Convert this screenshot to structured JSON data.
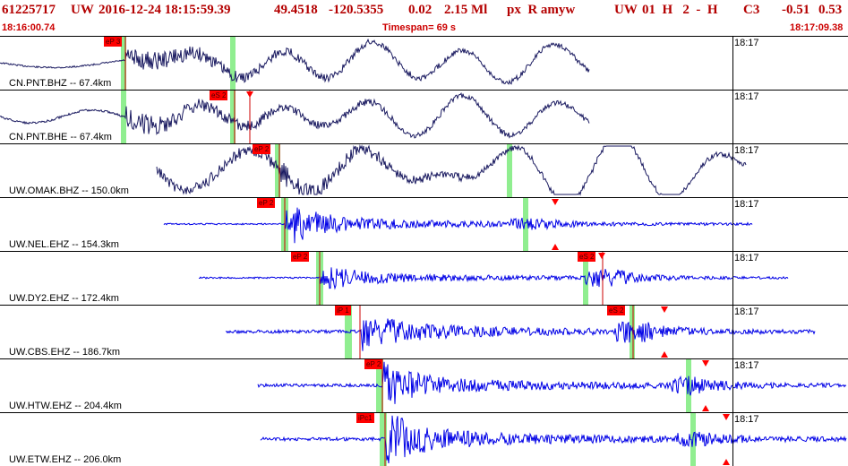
{
  "header": {
    "event_id": "61225717",
    "network": "UW",
    "datetime": "2016-12-24 18:15:59.39",
    "lat": "49.4518",
    "lon": "-120.5355",
    "depth": "0.02",
    "magnitude": "2.15 Ml",
    "flags": "px  R amyw",
    "net2": "UW",
    "code": "01  H   2  -  H",
    "quality": "C3",
    "v1": "-0.51",
    "v2": "0.53"
  },
  "subheader": {
    "start_time": "18:16:00.74",
    "timespan": "Timespan=  69 s",
    "end_time": "18:17:09.38"
  },
  "traces": [
    {
      "label": "CN.PNT.BHZ -- 67.4km",
      "time": "18:17",
      "color": "#1a1a60",
      "picks": [
        {
          "text": "eP 3"
        }
      ],
      "phase_marks": []
    },
    {
      "label": "CN.PNT.BHE -- 67.4km",
      "time": "18:17",
      "color": "#1a1a60",
      "picks": [
        {
          "text": "eS 2"
        }
      ],
      "phase_marks": [
        "down"
      ]
    },
    {
      "label": "UW.OMAK.BHZ -- 150.0km",
      "time": "18:17",
      "color": "#1a1a60",
      "picks": [
        {
          "text": "eP 2"
        }
      ],
      "phase_marks": []
    },
    {
      "label": "UW.NEL.EHZ -- 154.3km",
      "time": "18:17",
      "color": "#0000e6",
      "picks": [
        {
          "text": "eP 2"
        }
      ],
      "phase_marks": [
        "down",
        "up"
      ]
    },
    {
      "label": "UW.DY2.EHZ -- 172.4km",
      "time": "18:17",
      "color": "#0000e6",
      "picks": [
        {
          "text": "eP 2"
        },
        {
          "text": "eS 2"
        }
      ],
      "phase_marks": [
        "down"
      ]
    },
    {
      "label": "UW.CBS.EHZ -- 186.7km",
      "time": "18:17",
      "color": "#0000e6",
      "picks": [
        {
          "text": "iP 1"
        },
        {
          "text": "eS 2"
        }
      ],
      "phase_marks": [
        "down",
        "up"
      ]
    },
    {
      "label": "UW.HTW.EHZ -- 204.4km",
      "time": "18:17",
      "color": "#0000e6",
      "picks": [
        {
          "text": "eP 2"
        }
      ],
      "phase_marks": [
        "down",
        "up"
      ]
    },
    {
      "label": "UW.ETW.EHZ -- 206.0km",
      "time": "18:17",
      "color": "#0000e6",
      "picks": [
        {
          "text": "iPc1"
        }
      ],
      "phase_marks": [
        "down",
        "up"
      ]
    }
  ]
}
